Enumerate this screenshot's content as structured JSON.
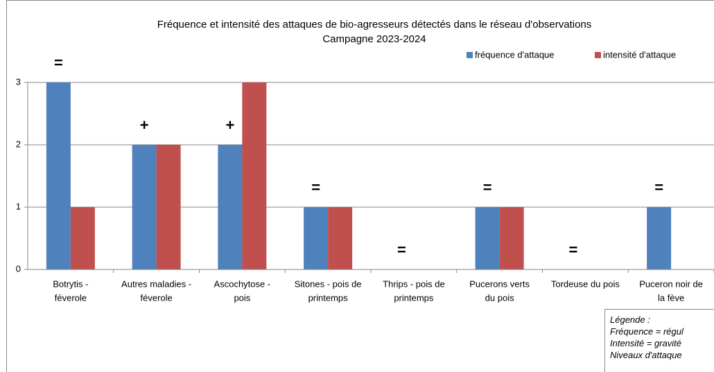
{
  "chart_data": {
    "type": "bar",
    "title": [
      "Fréquence et intensité des attaques de bio-agresseurs détectés dans le réseau d'observations",
      "Campagne 2023-2024"
    ],
    "categories": [
      [
        "Botrytis -",
        "féverole"
      ],
      [
        "Autres maladies -",
        "féverole"
      ],
      [
        "Ascochytose -",
        "pois"
      ],
      [
        "Sitones - pois de",
        "printemps"
      ],
      [
        "Thrips - pois de",
        "printemps"
      ],
      [
        "Pucerons verts",
        "du pois"
      ],
      [
        "Tordeuse du pois"
      ],
      [
        "Puceron noir de",
        "la fève"
      ]
    ],
    "series": [
      {
        "name": "fréquence d'attaque",
        "color": "#4F81BD",
        "values": [
          3,
          2,
          2,
          1,
          0,
          1,
          0,
          1
        ]
      },
      {
        "name": "intensité d'attaque",
        "color": "#C0504D",
        "values": [
          1,
          2,
          3,
          1,
          0,
          1,
          0,
          0
        ]
      }
    ],
    "trend_symbols": [
      {
        "text": "=",
        "color": "#FFC000"
      },
      {
        "text": "+",
        "color": "#FF0000"
      },
      {
        "text": "+",
        "color": "#FF0000"
      },
      {
        "text": "=",
        "color": "#FFC000"
      },
      {
        "text": "=",
        "color": "#00B050"
      },
      {
        "text": "=",
        "color": "#FFC000"
      },
      {
        "text": "=",
        "color": "#00B050"
      },
      {
        "text": "=",
        "color": "#00B050"
      }
    ],
    "ylim": [
      0,
      3
    ],
    "yticks": [
      0,
      1,
      2,
      3
    ],
    "grid": true,
    "note": [
      "Légende :",
      "Fréquence = régul",
      "Intensité = gravité",
      "Niveaux d'attaque"
    ]
  }
}
